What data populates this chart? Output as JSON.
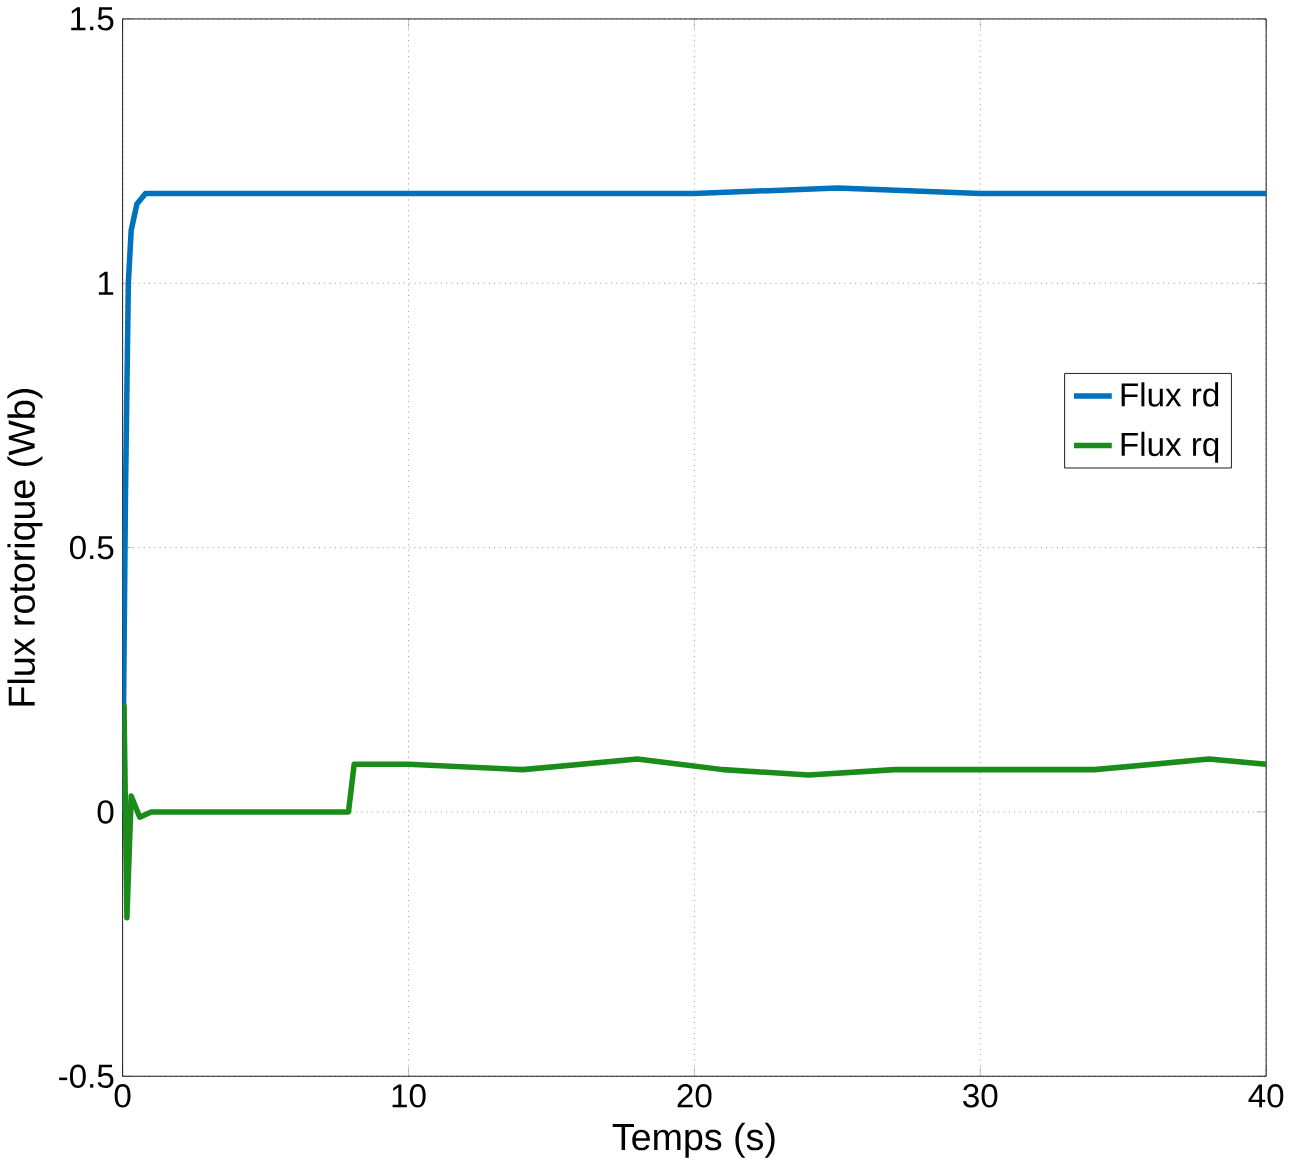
{
  "chart_data": {
    "type": "line",
    "xlabel": "Temps (s)",
    "ylabel": "Flux rotorique (Wb)",
    "xlim": [
      0,
      40
    ],
    "ylim": [
      -0.5,
      1.5
    ],
    "xticks": [
      0,
      10,
      20,
      30,
      40
    ],
    "yticks": [
      -0.5,
      0,
      0.5,
      1,
      1.5
    ],
    "grid": true,
    "legend": "right",
    "series": [
      {
        "name": "Flux rd",
        "color": "#0072bd",
        "x": [
          0,
          0.1,
          0.2,
          0.3,
          0.5,
          0.8,
          1.5,
          5,
          10,
          15,
          20,
          25,
          30,
          35,
          40
        ],
        "values": [
          0,
          0.6,
          1.0,
          1.1,
          1.15,
          1.17,
          1.17,
          1.17,
          1.17,
          1.17,
          1.17,
          1.18,
          1.17,
          1.17,
          1.17
        ]
      },
      {
        "name": "Flux rq",
        "color": "#1a8c1a",
        "x": [
          0,
          0.05,
          0.15,
          0.3,
          0.6,
          1,
          4,
          7.9,
          8.1,
          8.5,
          10,
          14,
          18,
          21,
          24,
          27,
          30,
          34,
          38,
          40
        ],
        "values": [
          0,
          0.2,
          -0.2,
          0.03,
          -0.01,
          0,
          0,
          0,
          0.09,
          0.09,
          0.09,
          0.08,
          0.1,
          0.08,
          0.07,
          0.08,
          0.08,
          0.08,
          0.1,
          0.09
        ]
      }
    ]
  }
}
